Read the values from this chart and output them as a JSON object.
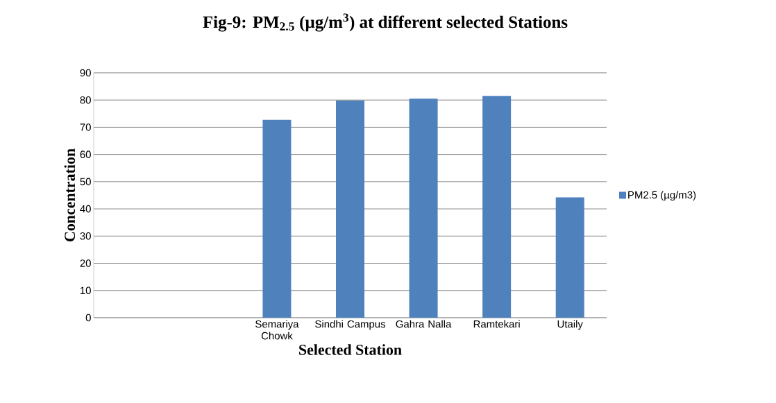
{
  "chart_data": {
    "type": "bar",
    "title": "Fig-9:  PM$_{2.5}$ (µg/m$^{3}$) at different selected Stations",
    "xlabel": "Selected Station",
    "ylabel": "Concentration",
    "categories": [
      null,
      null,
      "Semariya Chowk",
      "Sindhi Campus",
      "Gahra Nalla",
      "Ramtekari",
      "Utaily"
    ],
    "series": [
      {
        "name": "PM2.5 (µg/m3)",
        "color": "#4f81bd",
        "values": [
          null,
          null,
          72.7,
          79.8,
          80.5,
          81.5,
          44.2
        ]
      }
    ],
    "ylim": [
      0,
      90
    ],
    "yticks": [
      0,
      10,
      20,
      30,
      40,
      50,
      60,
      70,
      80,
      90
    ],
    "grid": "y",
    "legend": "right"
  }
}
